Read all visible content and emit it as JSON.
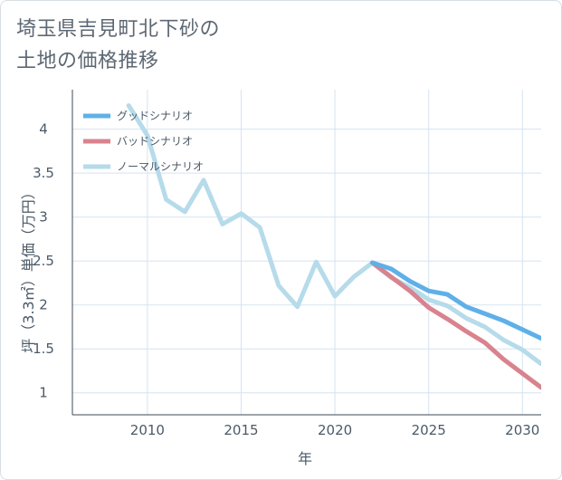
{
  "title_lines": [
    "埼玉県吉見町北下砂の",
    "土地の価格推移"
  ],
  "chart_data": {
    "type": "line",
    "title": "埼玉県吉見町北下砂の土地の価格推移",
    "xlabel": "年",
    "ylabel": "坪（3.3㎡）単価（万円）",
    "xlim": [
      2006,
      2031
    ],
    "ylim": [
      0.75,
      4.45
    ],
    "x_ticks": [
      2010,
      2015,
      2020,
      2025,
      2030
    ],
    "y_ticks": [
      1,
      1.5,
      2,
      2.5,
      3,
      3.5,
      4
    ],
    "x_tick_labels": [
      "2010",
      "2015",
      "2020",
      "2025",
      "2030"
    ],
    "y_tick_labels": [
      "1",
      "1.5",
      "2",
      "2.5",
      "3",
      "3.5",
      "4"
    ],
    "grid": true,
    "legend_position": "top-left",
    "series": [
      {
        "name": "グッドシナリオ",
        "color": "#5fb0e8",
        "x": [
          2022,
          2023,
          2024,
          2025,
          2026,
          2027,
          2028,
          2029,
          2030,
          2031
        ],
        "y": [
          2.48,
          2.41,
          2.27,
          2.16,
          2.12,
          1.98,
          1.9,
          1.82,
          1.72,
          1.62
        ]
      },
      {
        "name": "バッドシナリオ",
        "color": "#d9838e",
        "x": [
          2022,
          2023,
          2024,
          2025,
          2026,
          2027,
          2028,
          2029,
          2030,
          2031
        ],
        "y": [
          2.48,
          2.32,
          2.16,
          1.97,
          1.84,
          1.7,
          1.57,
          1.38,
          1.22,
          1.06
        ]
      },
      {
        "name": "ノーマルシナリオ",
        "color": "#b6dbea",
        "x": [
          2009,
          2010,
          2011,
          2012,
          2013,
          2014,
          2015,
          2016,
          2017,
          2018,
          2019,
          2020,
          2021,
          2022,
          2023,
          2024,
          2025,
          2026,
          2027,
          2028,
          2029,
          2030,
          2031
        ],
        "y": [
          4.27,
          3.93,
          3.2,
          3.06,
          3.42,
          2.92,
          3.04,
          2.88,
          2.22,
          1.98,
          2.49,
          2.1,
          2.32,
          2.48,
          2.31,
          2.2,
          2.06,
          1.99,
          1.85,
          1.75,
          1.6,
          1.49,
          1.33
        ]
      }
    ]
  }
}
